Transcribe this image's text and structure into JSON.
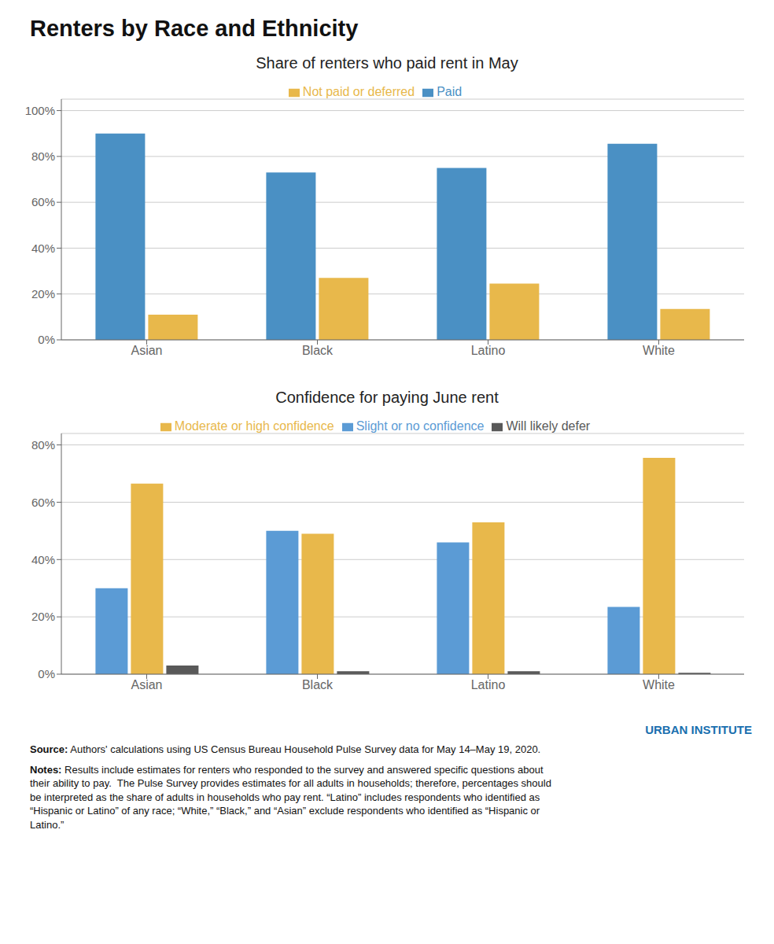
{
  "title": "Renters by Race and Ethnicity",
  "chart_data": [
    {
      "type": "bar",
      "title": "Share of renters who paid rent in May",
      "categories": [
        "Asian",
        "Black",
        "Latino",
        "White"
      ],
      "series": [
        {
          "name": "Paid",
          "color": "#4a90c4",
          "values": [
            0.9,
            0.73,
            0.75,
            0.855
          ]
        },
        {
          "name": "Not paid or deferred",
          "color": "#e8b84b",
          "values": [
            0.11,
            0.27,
            0.245,
            0.135
          ]
        }
      ],
      "ylim": [
        0,
        1.05
      ],
      "yticks": [
        {
          "value": 0,
          "label": "0%"
        },
        {
          "value": 0.2,
          "label": "20%"
        },
        {
          "value": 0.4,
          "label": "40%"
        },
        {
          "value": 0.6,
          "label": "60%"
        },
        {
          "value": 0.8,
          "label": "80%"
        },
        {
          "value": 1.0,
          "label": "100%"
        }
      ],
      "grid": true,
      "legend": "top"
    },
    {
      "type": "bar",
      "title": "Confidence for paying June rent",
      "categories": [
        "Asian",
        "Black",
        "Latino",
        "White"
      ],
      "series": [
        {
          "name": "Slight or no confidence",
          "color": "#5b9bd5",
          "values": [
            0.3,
            0.5,
            0.46,
            0.235
          ]
        },
        {
          "name": "Moderate or high confidence",
          "color": "#e8b84b",
          "values": [
            0.665,
            0.49,
            0.53,
            0.755
          ]
        },
        {
          "name": "Will likely defer",
          "color": "#595959",
          "values": [
            0.03,
            0.01,
            0.01,
            0.005
          ]
        }
      ],
      "ylim": [
        0,
        0.84
      ],
      "yticks": [
        {
          "value": 0,
          "label": "0%"
        },
        {
          "value": 0.2,
          "label": "20%"
        },
        {
          "value": 0.4,
          "label": "40%"
        },
        {
          "value": 0.6,
          "label": "60%"
        },
        {
          "value": 0.8,
          "label": "80%"
        }
      ],
      "grid": true,
      "legend": "top"
    }
  ],
  "annotations": [
    "URBAN INSTITUTE",
    "Source: Authors' calculations using US Census Bureau Household Pulse Survey data for May 14–May 19, 2020.",
    "Notes: Results include estimates for renters who responded to the survey and answered specific questions about\ntheir ability to pay.  The Pulse Survey provides estimates for all adults in households; therefore, percentages should\nbe interpreted as the share of adults in households who pay rent. “Latino” includes respondents who identified as\n“Hispanic or Latino” of any race; “White,” “Black,” and “Asian” exclude respondents who identified as “Hispanic or\nLatino.”"
  ]
}
